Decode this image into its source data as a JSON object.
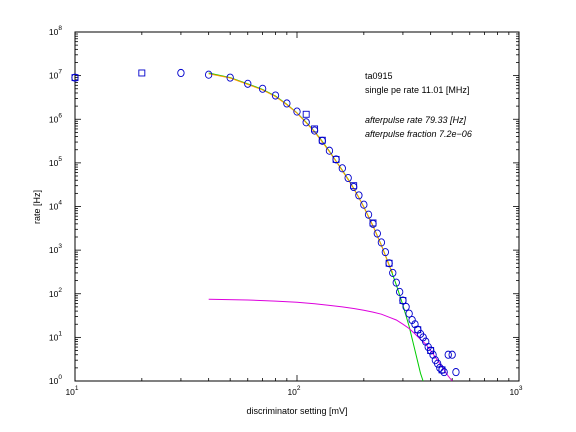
{
  "chart_data": {
    "type": "scatter",
    "xlabel": "discriminator setting [mV]",
    "ylabel": "rate [Hz]",
    "xscale": "log",
    "yscale": "log",
    "xlim": [
      10,
      1000
    ],
    "ylim": [
      1,
      100000000
    ],
    "grid": false,
    "x_ticks": [
      {
        "value": 10,
        "base": "10",
        "exp": "1"
      },
      {
        "value": 100,
        "base": "10",
        "exp": "2"
      },
      {
        "value": 1000,
        "base": "10",
        "exp": "3"
      }
    ],
    "y_ticks": [
      {
        "value": 1,
        "base": "10",
        "exp": "0"
      },
      {
        "value": 10,
        "base": "10",
        "exp": "1"
      },
      {
        "value": 100,
        "base": "10",
        "exp": "2"
      },
      {
        "value": 1000,
        "base": "10",
        "exp": "3"
      },
      {
        "value": 10000,
        "base": "10",
        "exp": "4"
      },
      {
        "value": 100000,
        "base": "10",
        "exp": "5"
      },
      {
        "value": 1000000,
        "base": "10",
        "exp": "6"
      },
      {
        "value": 10000000,
        "base": "10",
        "exp": "7"
      },
      {
        "value": 100000000,
        "base": "10",
        "exp": "8"
      }
    ],
    "annotations": [
      {
        "text": "ta0915",
        "italic": false
      },
      {
        "text": "single pe rate 11.01 [MHz]",
        "italic": false
      },
      {
        "text": "afterpulse rate 79.33 [Hz]",
        "italic": true
      },
      {
        "text": "afterpulse fraction 7.2e−06",
        "italic": true
      }
    ],
    "series": [
      {
        "marker": "circle",
        "color": "#0000cc",
        "points": [
          [
            10,
            9000000
          ],
          [
            30,
            11500000
          ],
          [
            40,
            10500000
          ],
          [
            50,
            9000000
          ],
          [
            60,
            6500000
          ],
          [
            70,
            5000000
          ],
          [
            80,
            3500000
          ],
          [
            90,
            2300000
          ],
          [
            100,
            1500000
          ],
          [
            110,
            850000
          ],
          [
            120,
            550000
          ],
          [
            130,
            320000
          ],
          [
            140,
            190000
          ],
          [
            150,
            120000
          ],
          [
            160,
            75000
          ],
          [
            170,
            45000
          ],
          [
            180,
            28000
          ],
          [
            190,
            18000
          ],
          [
            200,
            11000
          ],
          [
            210,
            6500
          ],
          [
            220,
            4000
          ],
          [
            230,
            2400
          ],
          [
            240,
            1500
          ],
          [
            250,
            900
          ],
          [
            260,
            500
          ],
          [
            270,
            300
          ],
          [
            280,
            180
          ],
          [
            290,
            110
          ],
          [
            300,
            70
          ],
          [
            310,
            50
          ],
          [
            320,
            35
          ],
          [
            330,
            25
          ],
          [
            340,
            20
          ],
          [
            350,
            15
          ],
          [
            360,
            12
          ],
          [
            370,
            10
          ],
          [
            380,
            8
          ],
          [
            390,
            6
          ],
          [
            400,
            5
          ],
          [
            410,
            4
          ],
          [
            420,
            3
          ],
          [
            430,
            2.5
          ],
          [
            440,
            2
          ],
          [
            450,
            1.8
          ],
          [
            460,
            1.6
          ],
          [
            480,
            4
          ],
          [
            500,
            4
          ],
          [
            520,
            1.6
          ]
        ]
      },
      {
        "marker": "square",
        "color": "#0000cc",
        "points": [
          [
            10,
            9000000
          ],
          [
            20,
            11500000
          ],
          [
            110,
            1300000
          ],
          [
            120,
            600000
          ],
          [
            130,
            330000
          ],
          [
            150,
            120000
          ],
          [
            180,
            30000
          ],
          [
            220,
            4200
          ],
          [
            260,
            500
          ],
          [
            300,
            70
          ],
          [
            350,
            15
          ],
          [
            400,
            5
          ],
          [
            450,
            1.8
          ]
        ]
      }
    ],
    "fits": [
      {
        "name": "green fit",
        "color": "#00cc00",
        "points": [
          [
            40,
            11500000
          ],
          [
            50,
            9000000
          ],
          [
            60,
            6500000
          ],
          [
            70,
            4800000
          ],
          [
            80,
            3400000
          ],
          [
            90,
            2200000
          ],
          [
            100,
            1400000
          ],
          [
            110,
            850000
          ],
          [
            120,
            520000
          ],
          [
            130,
            310000
          ],
          [
            140,
            185000
          ],
          [
            150,
            110000
          ],
          [
            160,
            68000
          ],
          [
            170,
            42000
          ],
          [
            180,
            26000
          ],
          [
            190,
            16000
          ],
          [
            200,
            9800
          ],
          [
            220,
            3600
          ],
          [
            240,
            1300
          ],
          [
            260,
            460
          ],
          [
            280,
            160
          ],
          [
            300,
            55
          ],
          [
            320,
            18
          ],
          [
            340,
            5
          ],
          [
            360,
            1.5
          ],
          [
            370,
            1
          ]
        ]
      },
      {
        "name": "orange fit",
        "color": "#ff9900",
        "points": [
          [
            40,
            11000000
          ],
          [
            50,
            8800000
          ],
          [
            60,
            6300000
          ],
          [
            70,
            4700000
          ],
          [
            80,
            3300000
          ],
          [
            90,
            2150000
          ],
          [
            100,
            1380000
          ],
          [
            110,
            830000
          ],
          [
            120,
            510000
          ],
          [
            130,
            300000
          ],
          [
            140,
            180000
          ],
          [
            150,
            108000
          ],
          [
            160,
            66000
          ],
          [
            170,
            41000
          ],
          [
            180,
            25500
          ],
          [
            190,
            15800
          ],
          [
            200,
            9700
          ],
          [
            220,
            3550
          ],
          [
            240,
            1280
          ],
          [
            260,
            450
          ],
          [
            270,
            300
          ]
        ]
      },
      {
        "name": "magenta afterpulse",
        "color": "#dd00dd",
        "points": [
          [
            40,
            75
          ],
          [
            60,
            72
          ],
          [
            80,
            68
          ],
          [
            100,
            64
          ],
          [
            120,
            59
          ],
          [
            140,
            54
          ],
          [
            160,
            50
          ],
          [
            180,
            46
          ],
          [
            200,
            42
          ],
          [
            220,
            38
          ],
          [
            240,
            34
          ],
          [
            260,
            29
          ],
          [
            280,
            25
          ],
          [
            300,
            20
          ],
          [
            320,
            16
          ],
          [
            340,
            12
          ],
          [
            360,
            9
          ],
          [
            380,
            7
          ],
          [
            400,
            5
          ],
          [
            420,
            3.5
          ],
          [
            440,
            2.5
          ],
          [
            460,
            1.8
          ],
          [
            480,
            1.3
          ],
          [
            500,
            1
          ]
        ]
      }
    ]
  }
}
